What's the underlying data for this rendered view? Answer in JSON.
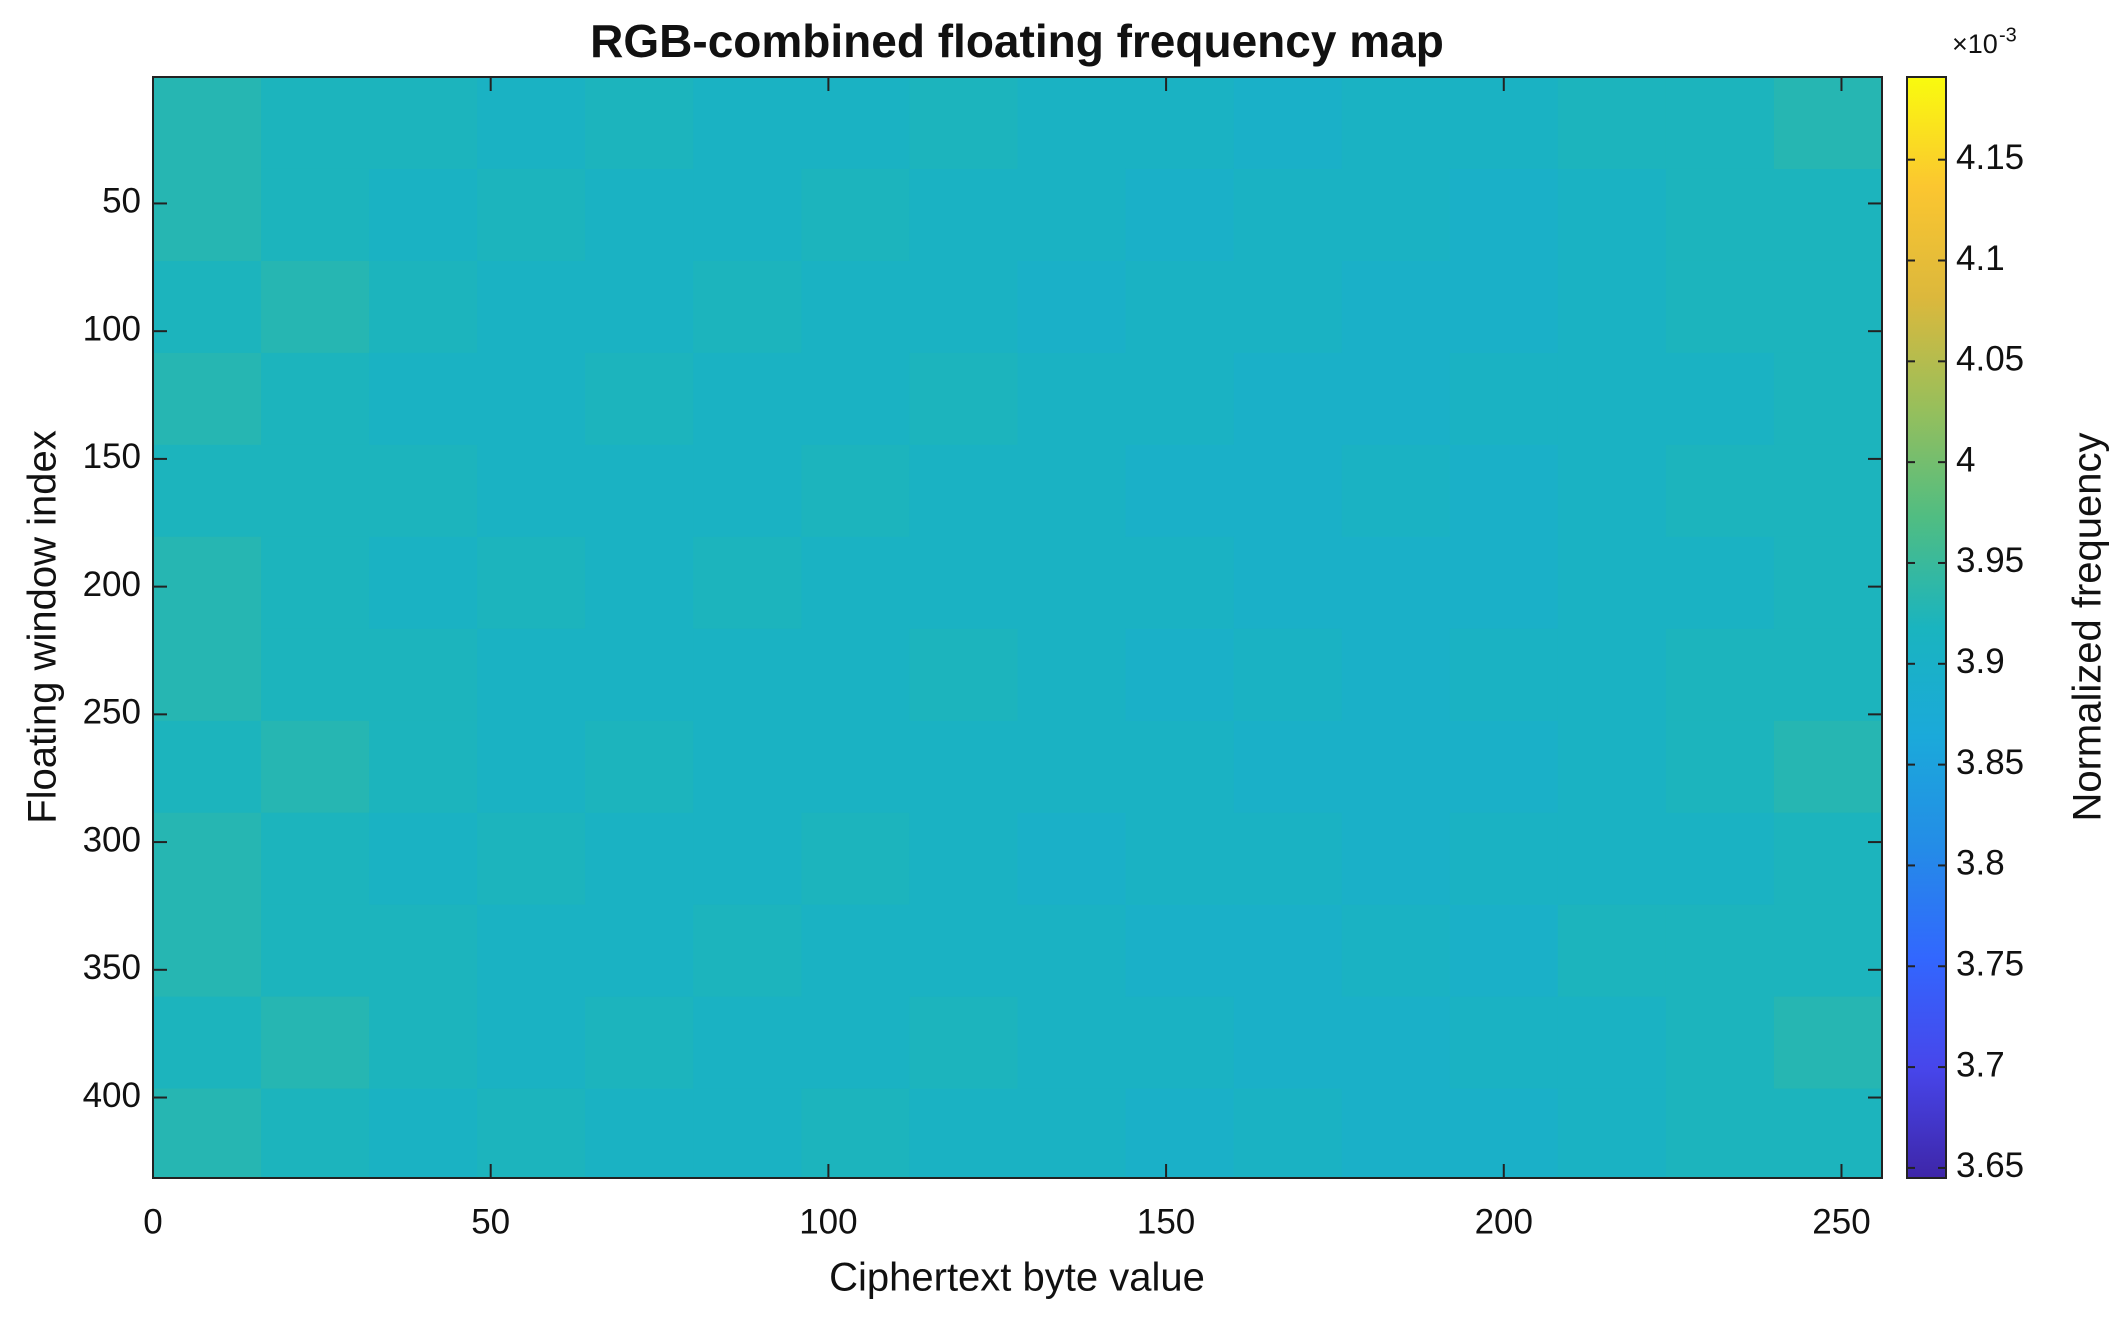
{
  "chart_data": {
    "type": "heatmap",
    "title": "RGB-combined floating frequency map",
    "x_label": "Ciphertext byte value",
    "y_label": "Floating window index",
    "colorbar_label": "Normalized frequency",
    "colorbar_base": "×10",
    "colorbar_exponent": "-3",
    "x_edges": [
      0,
      16,
      32,
      48,
      64,
      80,
      96,
      112,
      128,
      144,
      160,
      176,
      192,
      208,
      224,
      240,
      256
    ],
    "y_edges": [
      0.5,
      36.5,
      72.5,
      108.5,
      144.5,
      180.5,
      216.5,
      252.5,
      288.5,
      324.5,
      360.5,
      396.5,
      431.5
    ],
    "z": [
      [
        3.93,
        3.92,
        3.92,
        3.91,
        3.92,
        3.91,
        3.91,
        3.92,
        3.91,
        3.91,
        3.9,
        3.91,
        3.91,
        3.92,
        3.92,
        3.93
      ],
      [
        3.93,
        3.92,
        3.91,
        3.92,
        3.91,
        3.91,
        3.92,
        3.91,
        3.91,
        3.9,
        3.91,
        3.91,
        3.9,
        3.91,
        3.92,
        3.92
      ],
      [
        3.92,
        3.93,
        3.92,
        3.91,
        3.91,
        3.92,
        3.91,
        3.91,
        3.9,
        3.91,
        3.91,
        3.9,
        3.9,
        3.91,
        3.92,
        3.92
      ],
      [
        3.93,
        3.92,
        3.91,
        3.91,
        3.92,
        3.91,
        3.91,
        3.92,
        3.91,
        3.91,
        3.9,
        3.9,
        3.91,
        3.91,
        3.91,
        3.92
      ],
      [
        3.92,
        3.92,
        3.92,
        3.91,
        3.91,
        3.91,
        3.92,
        3.91,
        3.91,
        3.9,
        3.9,
        3.91,
        3.9,
        3.91,
        3.92,
        3.92
      ],
      [
        3.93,
        3.92,
        3.91,
        3.92,
        3.91,
        3.92,
        3.91,
        3.91,
        3.91,
        3.91,
        3.9,
        3.9,
        3.9,
        3.91,
        3.91,
        3.92
      ],
      [
        3.93,
        3.92,
        3.92,
        3.91,
        3.91,
        3.91,
        3.91,
        3.92,
        3.91,
        3.9,
        3.91,
        3.9,
        3.91,
        3.91,
        3.92,
        3.92
      ],
      [
        3.92,
        3.93,
        3.92,
        3.91,
        3.92,
        3.91,
        3.91,
        3.91,
        3.91,
        3.91,
        3.9,
        3.9,
        3.9,
        3.91,
        3.92,
        3.93
      ],
      [
        3.93,
        3.92,
        3.91,
        3.92,
        3.91,
        3.91,
        3.92,
        3.91,
        3.9,
        3.91,
        3.91,
        3.9,
        3.91,
        3.91,
        3.91,
        3.92
      ],
      [
        3.93,
        3.92,
        3.92,
        3.91,
        3.91,
        3.92,
        3.91,
        3.91,
        3.91,
        3.9,
        3.9,
        3.91,
        3.9,
        3.92,
        3.92,
        3.92
      ],
      [
        3.92,
        3.93,
        3.92,
        3.91,
        3.92,
        3.91,
        3.91,
        3.92,
        3.91,
        3.91,
        3.9,
        3.9,
        3.91,
        3.91,
        3.92,
        3.93
      ],
      [
        3.93,
        3.92,
        3.91,
        3.92,
        3.91,
        3.91,
        3.92,
        3.91,
        3.91,
        3.9,
        3.91,
        3.9,
        3.9,
        3.91,
        3.92,
        3.92
      ]
    ],
    "xlim": [
      0,
      256
    ],
    "xticks": [
      0,
      50,
      100,
      150,
      200,
      250
    ],
    "ylim": [
      0.5,
      431.5
    ],
    "yticks": [
      50,
      100,
      150,
      200,
      250,
      300,
      350,
      400
    ],
    "clim": [
      3.645,
      4.191
    ],
    "cticks": [
      3.65,
      3.7,
      3.75,
      3.8,
      3.85,
      3.9,
      3.95,
      4,
      4.05,
      4.1,
      4.15
    ],
    "colormap": [
      "#3e26a8",
      "#4746eb",
      "#3267fe",
      "#248ce7",
      "#1ba9da",
      "#1ab4bf",
      "#50bd82",
      "#98bf5b",
      "#dcb83c",
      "#fbc630",
      "#f9fb0e"
    ]
  }
}
